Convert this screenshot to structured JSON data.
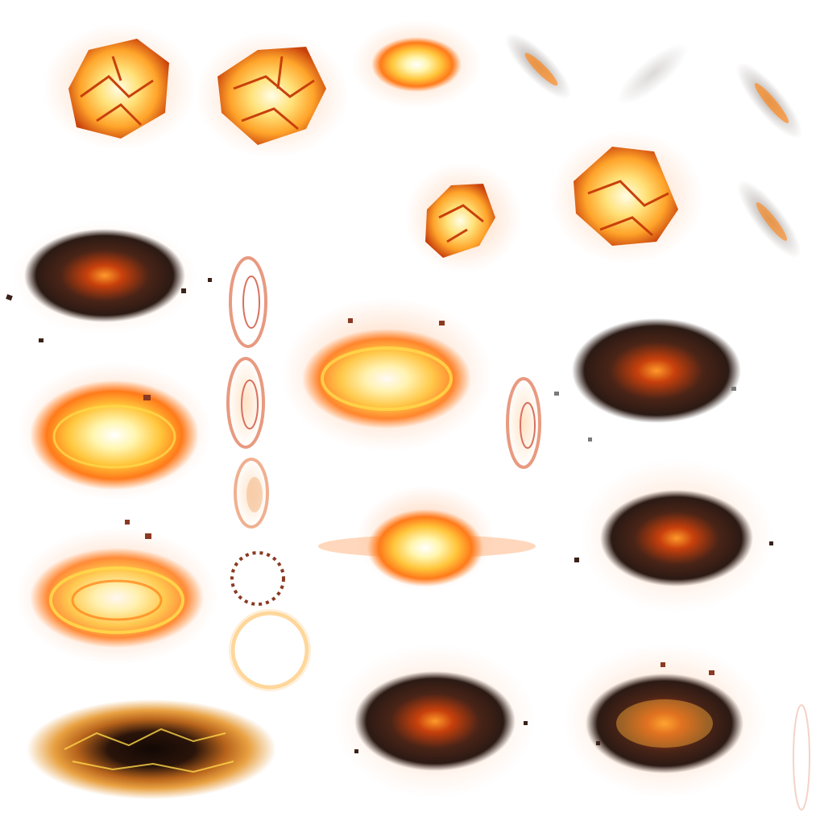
{
  "sheet": {
    "background": "#ffffff",
    "palette": {
      "core": "#fffde6",
      "bright": "#ffd84a",
      "orange": "#ff8a1e",
      "deep": "#d9420b",
      "ember": "#b2280a",
      "char": "#2b1a14",
      "smoke": "#9a8f8a",
      "glow": "#ffb07a"
    }
  }
}
